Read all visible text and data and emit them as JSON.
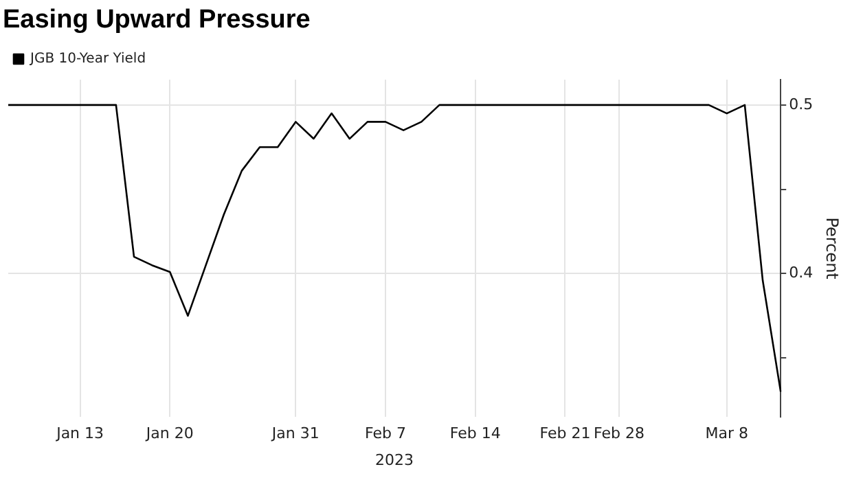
{
  "chart_data": {
    "type": "line",
    "title": "Easing Upward Pressure",
    "xlabel": "2023",
    "ylabel": "Percent",
    "categories": [
      null,
      null,
      null,
      null,
      "Jan 13",
      null,
      null,
      null,
      null,
      "Jan 20",
      null,
      null,
      null,
      null,
      null,
      null,
      "Jan 31",
      null,
      null,
      null,
      null,
      "Feb 7",
      null,
      null,
      null,
      null,
      "Feb 14",
      null,
      null,
      null,
      null,
      "Feb 21",
      null,
      null,
      "Feb 28",
      null,
      null,
      null,
      null,
      null,
      "Mar 8",
      null,
      null,
      null
    ],
    "series": [
      {
        "name": "JGB 10-Year Yield",
        "color": "#000000",
        "values": [
          0.5,
          0.5,
          0.5,
          0.5,
          0.5,
          0.5,
          0.5,
          0.41,
          0.405,
          0.401,
          0.375,
          0.405,
          0.435,
          0.461,
          0.475,
          0.475,
          0.49,
          0.48,
          0.495,
          0.48,
          0.49,
          0.49,
          0.485,
          0.49,
          0.5,
          0.5,
          0.5,
          0.5,
          0.5,
          0.5,
          0.5,
          0.5,
          0.5,
          0.5,
          0.5,
          0.5,
          0.5,
          0.5,
          0.5,
          0.5,
          0.495,
          0.5,
          0.396,
          0.33
        ]
      }
    ],
    "ylim": [
      0.315,
      0.515
    ],
    "yticks": [
      {
        "value": 0.35,
        "label": null
      },
      0.4,
      {
        "value": 0.45,
        "label": null
      },
      0.5
    ],
    "grid": true,
    "legend": "top left",
    "marker": "none",
    "line_style": "solid"
  }
}
